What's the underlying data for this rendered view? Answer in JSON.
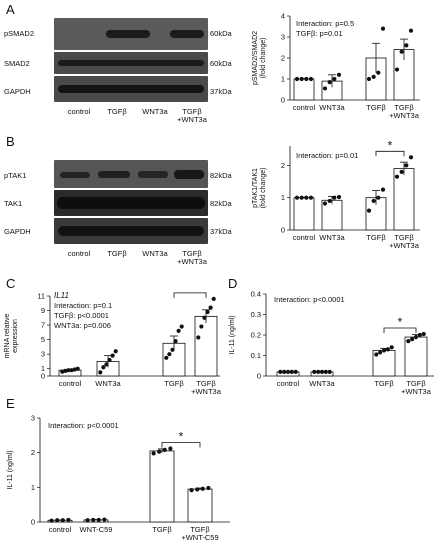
{
  "panels": {
    "A": {
      "letter": "A",
      "blot": {
        "rows": [
          {
            "protein": "pSMAD2",
            "kda": "60kDa"
          },
          {
            "protein": "SMAD2",
            "kda": "60kDa"
          },
          {
            "protein": "GAPDH",
            "kda": "37kDa"
          }
        ],
        "lanes": [
          "control",
          "TGFβ",
          "WNT3a",
          "TGFβ\n+WNT3a"
        ]
      }
    },
    "B": {
      "letter": "B",
      "blot": {
        "rows": [
          {
            "protein": "pTAK1",
            "kda": "82kDa"
          },
          {
            "protein": "TAK1",
            "kda": "82kDa"
          },
          {
            "protein": "GAPDH",
            "kda": "37kDa"
          }
        ],
        "lanes": [
          "control",
          "TGFβ",
          "WNT3a",
          "TGFβ\n+WNT3a"
        ]
      }
    },
    "C": {
      "letter": "C"
    },
    "D": {
      "letter": "D"
    },
    "E": {
      "letter": "E"
    }
  },
  "chart_data": [
    {
      "id": "A",
      "type": "bar",
      "categories": [
        "control",
        "WNT3a",
        "TGFβ",
        "TGFβ\n+WNT3a"
      ],
      "values": [
        1.0,
        0.9,
        2.0,
        2.4
      ],
      "errors": [
        0.02,
        0.3,
        0.7,
        0.5
      ],
      "points": [
        [
          1,
          1,
          1,
          1
        ],
        [
          0.55,
          0.85,
          1.0,
          1.2
        ],
        [
          1.0,
          1.1,
          1.3,
          3.4
        ],
        [
          1.45,
          2.3,
          2.6,
          3.3
        ]
      ],
      "ylabel": "pSMAD2/SMAD2\n(fold change)",
      "ylim": [
        0,
        4
      ],
      "yticks": [
        0,
        1,
        2,
        3,
        4
      ],
      "annotations": [
        "Interaction: p=0.5",
        "TGFβ: p=0.01"
      ]
    },
    {
      "id": "B",
      "type": "bar",
      "categories": [
        "control",
        "WNT3a",
        "TGFβ",
        "TGFβ\n+WNT3a"
      ],
      "values": [
        1.0,
        0.92,
        1.0,
        1.9
      ],
      "errors": [
        0.01,
        0.12,
        0.22,
        0.2
      ],
      "points": [
        [
          1,
          1,
          1,
          1
        ],
        [
          0.82,
          0.9,
          1.0,
          1.02
        ],
        [
          0.6,
          0.9,
          1.0,
          1.25
        ],
        [
          1.65,
          1.8,
          2.0,
          2.25
        ]
      ],
      "ylabel": "pTAK1/TAK1\n(fold change)",
      "ylim": [
        0,
        2.6
      ],
      "yticks": [
        0,
        1,
        2
      ],
      "annotations": [
        "Interaction: p=0.01"
      ],
      "significance": {
        "from": 2,
        "to": 3,
        "label": "*"
      }
    },
    {
      "id": "C",
      "type": "bar",
      "categories": [
        "control",
        "WNT3a",
        "TGFβ",
        "TGFβ\n+WNT3a"
      ],
      "values": [
        0.8,
        2.0,
        4.5,
        8.2
      ],
      "errors": [
        0.1,
        0.8,
        1.0,
        0.9
      ],
      "points": [
        [
          0.6,
          0.7,
          0.8,
          0.8,
          0.9,
          1.0
        ],
        [
          0.5,
          1.2,
          1.6,
          2.2,
          2.8,
          3.4
        ],
        [
          2.5,
          3.0,
          3.6,
          4.8,
          6.2,
          6.8
        ],
        [
          5.3,
          6.8,
          8.0,
          8.8,
          9.4,
          10.6
        ]
      ],
      "ylabel": "mRNA relative\nexpression",
      "ylim": [
        0,
        11
      ],
      "yticks": [
        0,
        1,
        3,
        5,
        7,
        9,
        11
      ],
      "annotations": [
        "IL11",
        "Interaction: p=0.1",
        "TGFβ: p<0.0001",
        "WNT3a: p=0.006"
      ],
      "significance": {
        "from": 2,
        "to": 3,
        "label": "*"
      }
    },
    {
      "id": "D",
      "type": "bar",
      "categories": [
        "control",
        "WNT3a",
        "TGFβ",
        "TGFβ\n+WNT3a"
      ],
      "values": [
        0.02,
        0.02,
        0.125,
        0.19
      ],
      "errors": [
        0.002,
        0.002,
        0.01,
        0.012
      ],
      "points": [
        [
          0.02,
          0.02,
          0.02,
          0.02,
          0.02
        ],
        [
          0.02,
          0.02,
          0.02,
          0.02,
          0.02
        ],
        [
          0.105,
          0.115,
          0.125,
          0.13,
          0.14
        ],
        [
          0.17,
          0.18,
          0.19,
          0.2,
          0.205
        ]
      ],
      "ylabel": "IL-11 (ng/ml)",
      "ylim": [
        0,
        0.4
      ],
      "yticks": [
        0,
        0.1,
        0.2,
        0.3,
        0.4
      ],
      "annotations": [
        "Interaction: p<0.0001"
      ],
      "significance": {
        "from": 2,
        "to": 3,
        "label": "*"
      }
    },
    {
      "id": "E",
      "type": "bar",
      "categories": [
        "control",
        "WNT-C59",
        "TGFβ",
        "TGFβ\n+WNT-C59"
      ],
      "values": [
        0.05,
        0.06,
        2.05,
        0.95
      ],
      "errors": [
        0.01,
        0.01,
        0.06,
        0.03
      ],
      "points": [
        [
          0.04,
          0.05,
          0.05,
          0.06
        ],
        [
          0.05,
          0.06,
          0.06,
          0.07
        ],
        [
          1.98,
          2.03,
          2.08,
          2.12
        ],
        [
          0.92,
          0.94,
          0.96,
          0.98
        ]
      ],
      "ylabel": "IL-11 (ng/ml)",
      "ylim": [
        0,
        3
      ],
      "yticks": [
        0,
        1,
        2,
        3
      ],
      "annotations": [
        "Interaction: p<0.0001"
      ],
      "significance": {
        "from": 2,
        "to": 3,
        "label": "*"
      }
    }
  ]
}
